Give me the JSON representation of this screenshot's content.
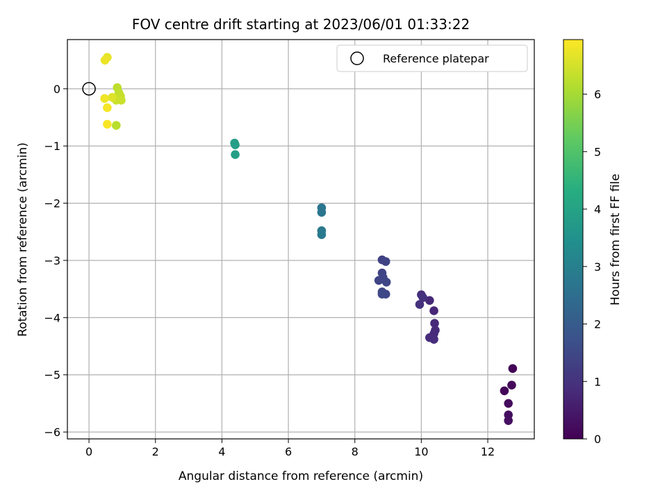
{
  "chart_data": {
    "type": "scatter",
    "title": "FOV centre drift starting at 2023/06/01 01:33:22",
    "xlabel": "Angular distance from reference (arcmin)",
    "ylabel": "Rotation from reference (arcmin)",
    "xlim": [
      -0.65,
      13.4
    ],
    "ylim": [
      -6.12,
      0.86
    ],
    "xticks": [
      0,
      2,
      4,
      6,
      8,
      10,
      12
    ],
    "yticks": [
      0,
      -1,
      -2,
      -3,
      -4,
      -5,
      -6
    ],
    "grid": true,
    "legend": {
      "position": "top-right",
      "entries": [
        "Reference platepar"
      ]
    },
    "reference_point": {
      "x": 0,
      "y": 0
    },
    "colorbar": {
      "label": "Hours from first FF file",
      "range": [
        0,
        6.95
      ],
      "ticks": [
        0,
        1,
        2,
        3,
        4,
        5,
        6
      ],
      "colormap": "viridis"
    },
    "points": [
      {
        "x": 12.75,
        "y": -4.89,
        "t": 0.05
      },
      {
        "x": 12.5,
        "y": -5.28,
        "t": 0.1
      },
      {
        "x": 12.72,
        "y": -5.18,
        "t": 0.15
      },
      {
        "x": 12.62,
        "y": -5.5,
        "t": 0.2
      },
      {
        "x": 12.62,
        "y": -5.7,
        "t": 0.25
      },
      {
        "x": 12.62,
        "y": -5.8,
        "t": 0.3
      },
      {
        "x": 10.38,
        "y": -3.88,
        "t": 0.75
      },
      {
        "x": 10.25,
        "y": -3.7,
        "t": 0.78
      },
      {
        "x": 10.4,
        "y": -4.1,
        "t": 0.8
      },
      {
        "x": 10.42,
        "y": -4.22,
        "t": 0.82
      },
      {
        "x": 10.38,
        "y": -4.28,
        "t": 0.84
      },
      {
        "x": 10.25,
        "y": -4.35,
        "t": 0.86
      },
      {
        "x": 10.38,
        "y": -4.38,
        "t": 0.88
      },
      {
        "x": 10.0,
        "y": -3.6,
        "t": 0.95
      },
      {
        "x": 9.95,
        "y": -3.77,
        "t": 0.97
      },
      {
        "x": 10.05,
        "y": -3.65,
        "t": 0.99
      },
      {
        "x": 8.82,
        "y": -2.99,
        "t": 1.35
      },
      {
        "x": 8.93,
        "y": -3.02,
        "t": 1.38
      },
      {
        "x": 8.82,
        "y": -3.22,
        "t": 1.4
      },
      {
        "x": 8.72,
        "y": -3.35,
        "t": 1.42
      },
      {
        "x": 8.85,
        "y": -3.3,
        "t": 1.44
      },
      {
        "x": 8.95,
        "y": -3.38,
        "t": 1.46
      },
      {
        "x": 8.82,
        "y": -3.55,
        "t": 1.48
      },
      {
        "x": 8.93,
        "y": -3.59,
        "t": 1.5
      },
      {
        "x": 8.82,
        "y": -3.59,
        "t": 1.52
      },
      {
        "x": 7.0,
        "y": -2.08,
        "t": 2.7
      },
      {
        "x": 7.0,
        "y": -2.16,
        "t": 2.72
      },
      {
        "x": 7.0,
        "y": -2.48,
        "t": 2.8
      },
      {
        "x": 7.0,
        "y": -2.55,
        "t": 2.82
      },
      {
        "x": 4.38,
        "y": -0.95,
        "t": 3.85
      },
      {
        "x": 4.4,
        "y": -0.98,
        "t": 3.87
      },
      {
        "x": 4.4,
        "y": -1.15,
        "t": 3.9
      },
      {
        "x": 0.85,
        "y": 0.02,
        "t": 6.25
      },
      {
        "x": 0.9,
        "y": -0.07,
        "t": 6.3
      },
      {
        "x": 0.95,
        "y": -0.13,
        "t": 6.35
      },
      {
        "x": 0.97,
        "y": -0.2,
        "t": 6.38
      },
      {
        "x": 0.82,
        "y": -0.2,
        "t": 6.4
      },
      {
        "x": 0.82,
        "y": -0.64,
        "t": 6.2
      },
      {
        "x": 0.55,
        "y": 0.55,
        "t": 6.7
      },
      {
        "x": 0.48,
        "y": 0.5,
        "t": 6.75
      },
      {
        "x": 0.7,
        "y": -0.15,
        "t": 6.6
      },
      {
        "x": 0.47,
        "y": -0.17,
        "t": 6.8
      },
      {
        "x": 0.55,
        "y": -0.33,
        "t": 6.85
      },
      {
        "x": 0.55,
        "y": -0.62,
        "t": 6.9
      }
    ]
  }
}
